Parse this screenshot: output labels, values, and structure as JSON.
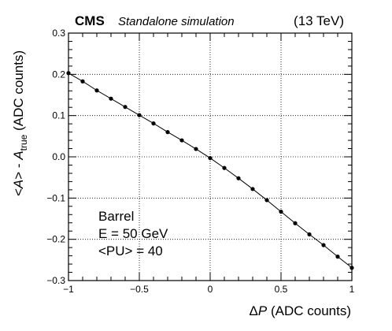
{
  "header": {
    "experiment": "CMS",
    "subtitle": "Standalone simulation",
    "energy": "(13 TeV)"
  },
  "annotation": {
    "lines": [
      "Barrel",
      "E = 50 GeV",
      "<PU> = 40"
    ]
  },
  "chart_data": {
    "type": "line",
    "xlabel": "ΔP (ADC counts)",
    "ylabel": "<A> - A_true (ADC counts)",
    "xlim": [
      -1,
      1
    ],
    "ylim": [
      -0.3,
      0.3
    ],
    "grid": true,
    "x_ticks": [
      -1,
      -0.5,
      0,
      0.5,
      1
    ],
    "x_tick_labels": [
      "−1",
      "−0.5",
      "0",
      "0.5",
      "1"
    ],
    "y_ticks": [
      -0.3,
      -0.2,
      -0.1,
      0,
      0.1,
      0.2,
      0.3
    ],
    "y_tick_labels": [
      "−0.3",
      "−0.2",
      "−0.1",
      "0.0",
      "0.1",
      "0.2",
      "0.3"
    ],
    "series": [
      {
        "x": [
          -1.0,
          -0.9,
          -0.8,
          -0.7,
          -0.6,
          -0.5,
          -0.4,
          -0.3,
          -0.2,
          -0.1,
          0.0,
          0.1,
          0.2,
          0.3,
          0.4,
          0.5,
          0.6,
          0.7,
          0.8,
          0.9,
          1.0
        ],
        "y": [
          0.203,
          0.183,
          0.161,
          0.141,
          0.121,
          0.101,
          0.081,
          0.06,
          0.04,
          0.019,
          -0.003,
          -0.027,
          -0.052,
          -0.078,
          -0.105,
          -0.133,
          -0.161,
          -0.188,
          -0.214,
          -0.242,
          -0.269
        ],
        "color": "#000000",
        "marker": "circle"
      }
    ]
  }
}
